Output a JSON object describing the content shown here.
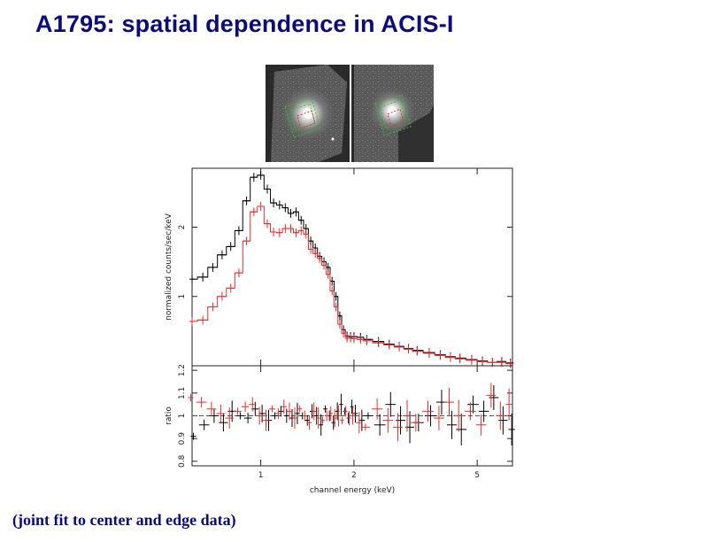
{
  "title": "A1795: spatial dependence in ACIS-I",
  "caption": "(joint fit to center and edge data)",
  "colors": {
    "title": "#0b0b7a",
    "center": "#000000",
    "edge": "#e03030",
    "regions": "#22cc22",
    "background": "#ffffff"
  },
  "images": {
    "panels": [
      {
        "name": "center-image",
        "regions": "green-region-boxes"
      },
      {
        "name": "edge-image",
        "regions": "green-region-boxes"
      }
    ]
  },
  "chart_data": {
    "type": "line",
    "xscale": "log",
    "xlabel": "channel energy (keV)",
    "xlim": [
      0.6,
      6.5
    ],
    "xticks": [
      1,
      2,
      5
    ],
    "x": [
      0.6,
      0.65,
      0.7,
      0.75,
      0.8,
      0.85,
      0.9,
      0.95,
      1.0,
      1.05,
      1.1,
      1.15,
      1.2,
      1.25,
      1.3,
      1.35,
      1.4,
      1.45,
      1.5,
      1.55,
      1.6,
      1.65,
      1.7,
      1.75,
      1.8,
      1.85,
      1.9,
      1.95,
      2.0,
      2.1,
      2.2,
      2.4,
      2.6,
      2.8,
      3.0,
      3.2,
      3.5,
      3.8,
      4.1,
      4.4,
      4.8,
      5.2,
      5.6,
      6.0,
      6.4
    ],
    "panels": [
      {
        "name": "spectrum",
        "ylabel": "normalized counts/sec/keV",
        "ylim": [
          0,
          2.85
        ],
        "yticks": [
          1,
          2
        ],
        "series": [
          {
            "values": [
              1.25,
              1.28,
              1.42,
              1.6,
              1.72,
              1.95,
              2.38,
              2.72,
              2.75,
              2.55,
              2.35,
              2.32,
              2.28,
              2.2,
              2.22,
              2.1,
              1.98,
              1.8,
              1.7,
              1.58,
              1.5,
              1.42,
              1.22,
              1.0,
              0.72,
              0.52,
              0.43,
              0.42,
              0.42,
              0.41,
              0.38,
              0.35,
              0.31,
              0.28,
              0.25,
              0.22,
              0.19,
              0.16,
              0.13,
              0.11,
              0.09,
              0.07,
              0.05,
              0.06,
              0.04
            ]
          },
          {
            "values": [
              0.64,
              0.66,
              0.85,
              1.0,
              1.12,
              1.34,
              1.8,
              2.22,
              2.3,
              2.05,
              1.93,
              1.92,
              1.98,
              1.98,
              1.92,
              1.95,
              1.9,
              1.68,
              1.62,
              1.55,
              1.45,
              1.32,
              1.08,
              0.85,
              0.6,
              0.47,
              0.4,
              0.4,
              0.39,
              0.38,
              0.36,
              0.33,
              0.3,
              0.27,
              0.24,
              0.21,
              0.18,
              0.15,
              0.12,
              0.1,
              0.08,
              0.06,
              0.05,
              0.05,
              0.03
            ]
          }
        ]
      },
      {
        "name": "ratio",
        "ylabel": "ratio",
        "ylim": [
          0.78,
          1.22
        ],
        "yticks": [
          0.8,
          0.9,
          1,
          1.1,
          1.2
        ],
        "baseline": 1.0,
        "series": [
          {
            "values": [
              0.91,
              0.96,
              1.0,
              0.97,
              1.02,
              1.0,
              0.99,
              1.03,
              1.01,
              0.98,
              1.0,
              1.02,
              1.0,
              0.99,
              1.01,
              1.0,
              0.98,
              1.02,
              1.0,
              0.96,
              1.03,
              1.0,
              0.97,
              1.02,
              1.05,
              1.02,
              0.99,
              1.04,
              1.01,
              0.98,
              1.0,
              0.96,
              1.05,
              0.98,
              0.95,
              0.97,
              1.0,
              1.06,
              0.96,
              0.94,
              1.05,
              1.02,
              1.08,
              0.98,
              0.94
            ]
          },
          {
            "values": [
              1.08,
              1.06,
              1.03,
              1.01,
              0.99,
              1.02,
              1.04,
              1.05,
              1.0,
              0.98,
              1.03,
              1.01,
              1.04,
              1.02,
              0.99,
              1.03,
              1.0,
              0.97,
              1.02,
              0.99,
              0.98,
              1.0,
              1.01,
              0.99,
              1.0,
              0.98,
              1.02,
              0.99,
              1.0,
              0.97,
              0.95,
              1.03,
              0.98,
              0.95,
              1.0,
              0.97,
              1.02,
              0.99,
              1.06,
              1.0,
              1.02,
              0.96,
              1.09,
              1.0,
              1.05
            ]
          }
        ]
      }
    ]
  }
}
